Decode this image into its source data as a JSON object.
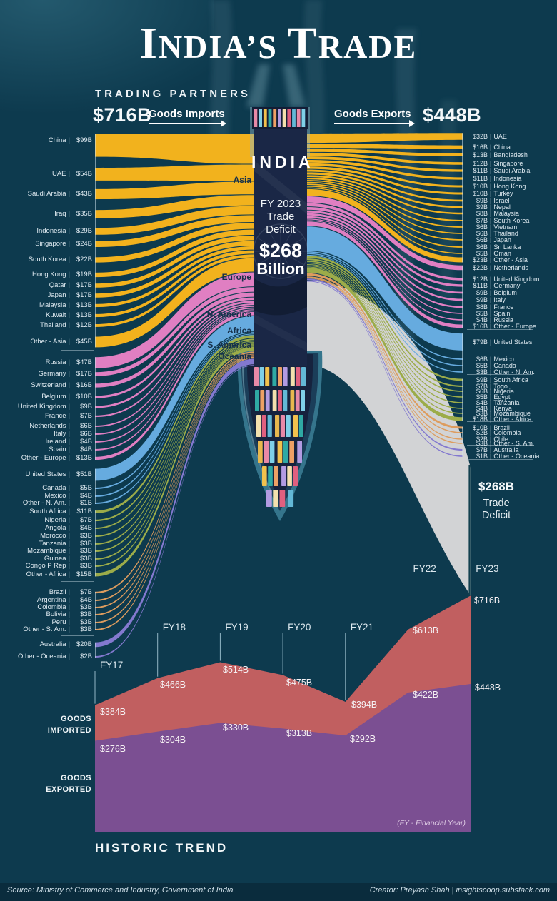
{
  "title": "INDIA’S TRADE",
  "header": {
    "section_label": "TRADING PARTNERS",
    "imports_total": "$716B",
    "imports_direction": "Goods Imports",
    "exports_direction": "Goods Exports",
    "exports_total": "$448B"
  },
  "center_column": {
    "country": "INDIA",
    "fy": "FY 2023",
    "trade": "Trade",
    "deficit": "Deficit",
    "amount": "$268",
    "unit": "Billion"
  },
  "deficit_callout": {
    "amount": "$268B",
    "line1": "Trade",
    "line2": "Deficit"
  },
  "continents": [
    {
      "name": "Asia",
      "color": "#f2b21d"
    },
    {
      "name": "Europe",
      "color": "#e07fc2"
    },
    {
      "name": "N. America",
      "color": "#66abdf"
    },
    {
      "name": "Africa",
      "color": "#9cac49"
    },
    {
      "name": "S. America",
      "color": "#dd9c5e"
    },
    {
      "name": "Oceania",
      "color": "#8379cf"
    }
  ],
  "trend": {
    "title": "HISTORIC TREND",
    "note": "(FY - Financial Year)",
    "legend_imported": [
      "GOODS",
      "IMPORTED"
    ],
    "legend_exported": [
      "GOODS",
      "EXPORTED"
    ]
  },
  "footer": {
    "source": "Source: Ministry of Commerce and Industry, Government of India",
    "creator": "Creator: Preyash Shah | insightscoop.substack.com"
  },
  "colors": {
    "background": "#0d3a4e",
    "deficit_gray": "#d2d3d5",
    "imports_area": "#c15f60",
    "exports_area": "#7b4f92",
    "column_navy": "#1a2746"
  },
  "chart_data": [
    {
      "type": "sankey",
      "title": "India FY 2023 trading partners",
      "unit": "USD billions",
      "imports_total_b": 716,
      "exports_total_b": 448,
      "trade_deficit_b": 268,
      "imports": [
        {
          "continent": "Asia",
          "color": "#f2b21d",
          "partners": [
            {
              "name": "China",
              "b": 99
            },
            {
              "name": "UAE",
              "b": 54
            },
            {
              "name": "Saudi Arabia",
              "b": 43
            },
            {
              "name": "Iraq",
              "b": 35
            },
            {
              "name": "Indonesia",
              "b": 29
            },
            {
              "name": "Singapore",
              "b": 24
            },
            {
              "name": "South Korea",
              "b": 22
            },
            {
              "name": "Hong Kong",
              "b": 19
            },
            {
              "name": "Qatar",
              "b": 17
            },
            {
              "name": "Japan",
              "b": 17
            },
            {
              "name": "Malaysia",
              "b": 13
            },
            {
              "name": "Kuwait",
              "b": 13
            },
            {
              "name": "Thailand",
              "b": 12
            },
            {
              "name": "Other - Asia",
              "b": 45
            }
          ]
        },
        {
          "continent": "Europe",
          "color": "#e07fc2",
          "partners": [
            {
              "name": "Russia",
              "b": 47
            },
            {
              "name": "Germany",
              "b": 17
            },
            {
              "name": "Switzerland",
              "b": 16
            },
            {
              "name": "Belgium",
              "b": 10
            },
            {
              "name": "United Kingdom",
              "b": 9
            },
            {
              "name": "France",
              "b": 7
            },
            {
              "name": "Netherlands",
              "b": 6
            },
            {
              "name": "Italy",
              "b": 6
            },
            {
              "name": "Ireland",
              "b": 4
            },
            {
              "name": "Spain",
              "b": 4
            },
            {
              "name": "Other - Europe",
              "b": 13
            }
          ]
        },
        {
          "continent": "N. America",
          "color": "#66abdf",
          "partners": [
            {
              "name": "United States",
              "b": 51
            },
            {
              "name": "Canada",
              "b": 5
            },
            {
              "name": "Mexico",
              "b": 4
            },
            {
              "name": "Other - N. Am.",
              "b": 1
            }
          ]
        },
        {
          "continent": "Africa",
          "color": "#9cac49",
          "partners": [
            {
              "name": "South Africa",
              "b": 11
            },
            {
              "name": "Nigeria",
              "b": 7
            },
            {
              "name": "Angola",
              "b": 4
            },
            {
              "name": "Morocco",
              "b": 3
            },
            {
              "name": "Tanzania",
              "b": 3
            },
            {
              "name": "Mozambique",
              "b": 3
            },
            {
              "name": "Guinea",
              "b": 3
            },
            {
              "name": "Congo P Rep",
              "b": 3
            },
            {
              "name": "Other - Africa",
              "b": 15
            }
          ]
        },
        {
          "continent": "S. America",
          "color": "#dd9c5e",
          "partners": [
            {
              "name": "Brazil",
              "b": 7
            },
            {
              "name": "Argentina",
              "b": 4
            },
            {
              "name": "Colombia",
              "b": 3
            },
            {
              "name": "Bolivia",
              "b": 3
            },
            {
              "name": "Peru",
              "b": 3
            },
            {
              "name": "Other - S. Am.",
              "b": 3
            }
          ]
        },
        {
          "continent": "Oceania",
          "color": "#8379cf",
          "partners": [
            {
              "name": "Australia",
              "b": 20
            },
            {
              "name": "Other - Oceania",
              "b": 2
            }
          ]
        }
      ],
      "exports": [
        {
          "continent": "Asia",
          "color": "#f2b21d",
          "partners": [
            {
              "name": "UAE",
              "b": 32
            },
            {
              "name": "China",
              "b": 16
            },
            {
              "name": "Bangladesh",
              "b": 13
            },
            {
              "name": "Singapore",
              "b": 12
            },
            {
              "name": "Saudi Arabia",
              "b": 11
            },
            {
              "name": "Indonesia",
              "b": 11
            },
            {
              "name": "Hong Kong",
              "b": 10
            },
            {
              "name": "Turkey",
              "b": 10
            },
            {
              "name": "Israel",
              "b": 9
            },
            {
              "name": "Nepal",
              "b": 9
            },
            {
              "name": "Malaysia",
              "b": 8
            },
            {
              "name": "South Korea",
              "b": 7
            },
            {
              "name": "Vietnam",
              "b": 6
            },
            {
              "name": "Thailand",
              "b": 6
            },
            {
              "name": "Japan",
              "b": 6
            },
            {
              "name": "Sri Lanka",
              "b": 6
            },
            {
              "name": "Oman",
              "b": 5
            },
            {
              "name": "Other - Asia",
              "b": 23
            }
          ]
        },
        {
          "continent": "Europe",
          "color": "#e07fc2",
          "partners": [
            {
              "name": "Netherlands",
              "b": 22
            },
            {
              "name": "United Kingdom",
              "b": 12
            },
            {
              "name": "Germany",
              "b": 11
            },
            {
              "name": "Belgium",
              "b": 9
            },
            {
              "name": "Italy",
              "b": 9
            },
            {
              "name": "France",
              "b": 8
            },
            {
              "name": "Spain",
              "b": 5
            },
            {
              "name": "Russia",
              "b": 4
            },
            {
              "name": "Other - Europe",
              "b": 16
            }
          ]
        },
        {
          "continent": "N. America",
          "color": "#66abdf",
          "partners": [
            {
              "name": "United States",
              "b": 79
            },
            {
              "name": "Mexico",
              "b": 6
            },
            {
              "name": "Canada",
              "b": 5
            },
            {
              "name": "Other - N. Am.",
              "b": 3
            }
          ]
        },
        {
          "continent": "Africa",
          "color": "#9cac49",
          "partners": [
            {
              "name": "South Africa",
              "b": 9
            },
            {
              "name": "Togo",
              "b": 7
            },
            {
              "name": "Nigeria",
              "b": 6
            },
            {
              "name": "Egypt",
              "b": 5
            },
            {
              "name": "Tanzania",
              "b": 4
            },
            {
              "name": "Kenya",
              "b": 4
            },
            {
              "name": "Mozambique",
              "b": 3
            },
            {
              "name": "Other - Africa",
              "b": 18
            }
          ]
        },
        {
          "continent": "S. America",
          "color": "#dd9c5e",
          "partners": [
            {
              "name": "Brazil",
              "b": 10
            },
            {
              "name": "Colombia",
              "b": 2
            },
            {
              "name": "Chile",
              "b": 2
            },
            {
              "name": "Other - S. Am.",
              "b": 3
            }
          ]
        },
        {
          "continent": "Oceania",
          "color": "#8379cf",
          "partners": [
            {
              "name": "Australia",
              "b": 7
            },
            {
              "name": "Other - Oceania",
              "b": 1
            }
          ]
        }
      ]
    },
    {
      "type": "area",
      "title": "Historic Trend",
      "categories": [
        "FY17",
        "FY18",
        "FY19",
        "FY20",
        "FY21",
        "FY22",
        "FY23"
      ],
      "series": [
        {
          "name": "Goods Imported",
          "color": "#c15f60",
          "values": [
            384,
            466,
            514,
            475,
            394,
            613,
            716
          ]
        },
        {
          "name": "Goods Exported",
          "color": "#7b4f92",
          "values": [
            276,
            304,
            330,
            313,
            292,
            422,
            448
          ]
        }
      ],
      "ylabel": "USD billions",
      "grid": false,
      "legend_position": "left"
    }
  ]
}
